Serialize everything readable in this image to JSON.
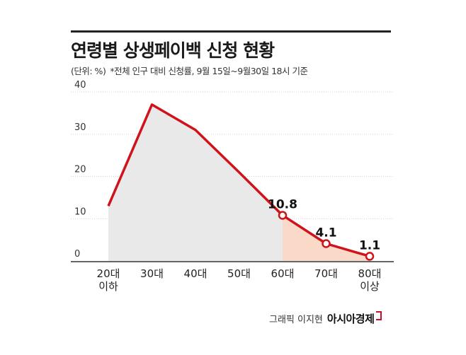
{
  "chart_data": {
    "type": "line",
    "title": "연령별 상생페이백 신청 현황",
    "unit_note": "(단위: %)",
    "note": "*전체 인구 대비 신청률, 9월 15일~9월30일 18시 기준",
    "categories": [
      "20대\n이하",
      "30대",
      "40대",
      "50대",
      "60대",
      "70대",
      "80대\n이상"
    ],
    "values": [
      13,
      37,
      31,
      21,
      10.8,
      4.1,
      1.1
    ],
    "data_labels": [
      "",
      "",
      "",
      "",
      "10.8",
      "4.1",
      "1.1"
    ],
    "yticks": [
      0,
      10,
      20,
      30,
      40
    ],
    "ylim": [
      0,
      40
    ],
    "grid": true,
    "line_color": "#d0121b",
    "fill_color": "#e9e9e9",
    "highlight_fill_color": "#fbd9c8",
    "highlight_from_index": 4
  },
  "footer": {
    "credit": "그래픽 이지현",
    "brand": "아시아경제"
  }
}
